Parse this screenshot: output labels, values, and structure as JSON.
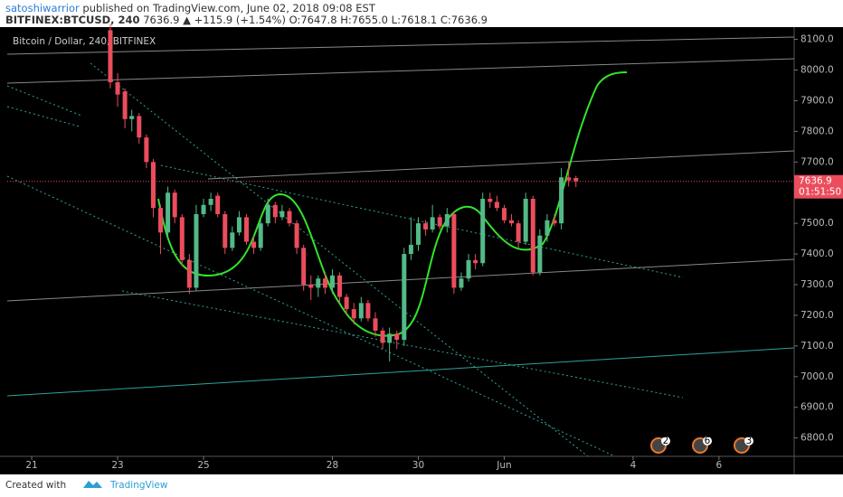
{
  "header": {
    "author": "satoshiwarrior",
    "published": "published on TradingView.com, June 02, 2018 09:08 EST",
    "symbol": "BITFINEX:BTCUSD, 240",
    "quote": "7636.9 ▲ +115.9 (+1.54%) O:7647.8 H:7655.0 L:7618.1 C:7636.9"
  },
  "footer": {
    "created": "Created with",
    "brand": "TradingView"
  },
  "badges": [
    "2",
    "6",
    "3"
  ],
  "chart_data": {
    "type": "candlestick",
    "title": "Bitcoin / Dollar, 240, BITFINEX",
    "x": [
      1.83,
      2,
      2.17,
      2.33,
      2.5,
      2.67,
      2.83,
      3,
      3.17,
      3.33,
      3.5,
      3.67,
      3.83,
      4,
      4.17,
      4.33,
      4.5,
      4.67,
      4.83,
      5,
      5.17,
      5.33,
      5.5,
      5.67,
      5.83,
      6,
      6.17,
      6.33,
      6.5,
      6.67,
      6.83,
      7,
      7.17,
      7.33,
      7.5,
      7.67,
      7.83,
      8,
      8.17,
      8.33,
      8.5,
      8.67,
      8.83,
      9,
      9.17,
      9.33,
      9.5,
      9.67,
      9.83,
      10,
      10.17,
      10.33,
      10.5,
      10.67,
      10.83,
      11,
      11.17,
      11.33,
      11.5,
      11.67,
      11.83,
      12,
      12.17,
      12.33,
      12.5,
      12.67
    ],
    "open": [
      8130,
      7960,
      7930,
      7840,
      7850,
      7780,
      7700,
      7550,
      7470,
      7600,
      7520,
      7380,
      7290,
      7530,
      7560,
      7590,
      7530,
      7420,
      7470,
      7520,
      7440,
      7420,
      7500,
      7560,
      7520,
      7540,
      7500,
      7420,
      7300,
      7290,
      7320,
      7290,
      7330,
      7260,
      7220,
      7190,
      7240,
      7190,
      7150,
      7110,
      7140,
      7120,
      7400,
      7430,
      7500,
      7480,
      7520,
      7490,
      7530,
      7290,
      7320,
      7380,
      7370,
      7580,
      7570,
      7550,
      7510,
      7500,
      7440,
      7580,
      7340,
      7460,
      7510,
      7500,
      7650,
      7647.8
    ],
    "high": [
      8150,
      7990,
      7940,
      7870,
      7860,
      7790,
      7710,
      7560,
      7620,
      7610,
      7530,
      7400,
      7560,
      7580,
      7600,
      7600,
      7540,
      7490,
      7540,
      7530,
      7460,
      7510,
      7580,
      7570,
      7560,
      7550,
      7510,
      7430,
      7330,
      7330,
      7340,
      7350,
      7340,
      7270,
      7240,
      7260,
      7250,
      7210,
      7160,
      7160,
      7150,
      7420,
      7520,
      7520,
      7510,
      7560,
      7530,
      7550,
      7540,
      7340,
      7400,
      7400,
      7600,
      7600,
      7590,
      7560,
      7530,
      7510,
      7600,
      7590,
      7480,
      7530,
      7530,
      7680,
      7700,
      7655.0
    ],
    "low": [
      7940,
      7880,
      7810,
      7800,
      7760,
      7680,
      7520,
      7400,
      7450,
      7500,
      7360,
      7270,
      7280,
      7520,
      7540,
      7520,
      7400,
      7410,
      7460,
      7430,
      7400,
      7410,
      7490,
      7500,
      7510,
      7490,
      7400,
      7280,
      7250,
      7260,
      7270,
      7270,
      7240,
      7200,
      7170,
      7180,
      7180,
      7130,
      7090,
      7050,
      7090,
      7100,
      7380,
      7410,
      7460,
      7470,
      7480,
      7470,
      7270,
      7280,
      7310,
      7350,
      7360,
      7550,
      7540,
      7500,
      7490,
      7420,
      7430,
      7330,
      7330,
      7440,
      7490,
      7480,
      7620,
      7618.1
    ],
    "close": [
      7960,
      7920,
      7840,
      7850,
      7780,
      7700,
      7550,
      7470,
      7600,
      7520,
      7380,
      7290,
      7530,
      7560,
      7580,
      7530,
      7420,
      7470,
      7520,
      7440,
      7420,
      7500,
      7560,
      7520,
      7540,
      7500,
      7420,
      7300,
      7290,
      7320,
      7290,
      7330,
      7260,
      7220,
      7190,
      7240,
      7190,
      7150,
      7110,
      7140,
      7120,
      7400,
      7430,
      7500,
      7480,
      7520,
      7490,
      7530,
      7290,
      7320,
      7380,
      7370,
      7580,
      7570,
      7550,
      7510,
      7500,
      7440,
      7580,
      7340,
      7460,
      7510,
      7500,
      7650,
      7640,
      7636.9
    ],
    "up_color": "#53b987",
    "down_color": "#eb4d5c",
    "countdown": "01:51:50",
    "xlim": [
      -0.57,
      17.75
    ],
    "xticks": [
      {
        "value": 0,
        "label": "21"
      },
      {
        "value": 2,
        "label": "23"
      },
      {
        "value": 4,
        "label": "25"
      },
      {
        "value": 7,
        "label": "28"
      },
      {
        "value": 9,
        "label": "30"
      },
      {
        "value": 11,
        "label": "Jun"
      },
      {
        "value": 14,
        "label": "4"
      },
      {
        "value": 16,
        "label": "6"
      }
    ],
    "ylim": [
      6740,
      8140
    ],
    "yticks": [
      {
        "value": 6800,
        "label": "6800.0"
      },
      {
        "value": 6900,
        "label": "6900.0"
      },
      {
        "value": 7000,
        "label": "7000.0"
      },
      {
        "value": 7100,
        "label": "7100.0"
      },
      {
        "value": 7200,
        "label": "7200.0"
      },
      {
        "value": 7300,
        "label": "7300.0"
      },
      {
        "value": 7400,
        "label": "7400.0"
      },
      {
        "value": 7500,
        "label": "7500.0"
      },
      {
        "value": 7600,
        "label": "7600.0"
      },
      {
        "value": 7700,
        "label": "7700.0"
      },
      {
        "value": 7800,
        "label": "7800.0"
      },
      {
        "value": 7900,
        "label": "7900.0"
      },
      {
        "value": 8000,
        "label": "8000.0"
      },
      {
        "value": 8100,
        "label": "8100.0"
      }
    ],
    "grid": false
  }
}
